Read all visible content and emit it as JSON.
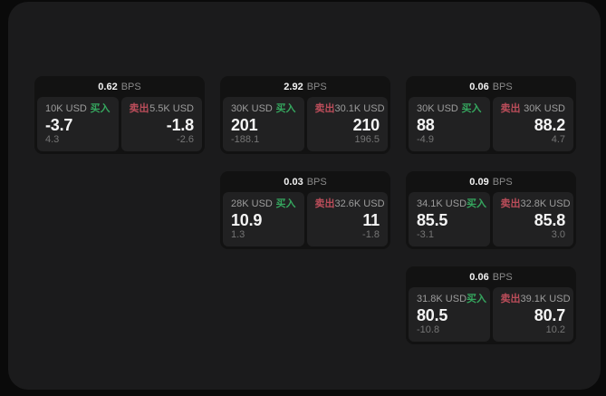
{
  "labels": {
    "bps_unit": "BPS",
    "buy": "买入",
    "sell": "卖出"
  },
  "colors": {
    "background": "#0a0a0a",
    "panel": "#1b1b1c",
    "card": "#121212",
    "subcard": "#212122",
    "buy": "#35a65e",
    "sell": "#bb4d5a"
  },
  "cards": [
    {
      "bps": "0.62",
      "buy": {
        "amount": "10K USD",
        "price": "-3.7",
        "change": "4.3"
      },
      "sell": {
        "amount": "5.5K USD",
        "price": "-1.8",
        "change": "-2.6"
      }
    },
    {
      "bps": "2.92",
      "buy": {
        "amount": "30K USD",
        "price": "201",
        "change": "-188.1"
      },
      "sell": {
        "amount": "30.1K USD",
        "price": "210",
        "change": "196.5"
      }
    },
    {
      "bps": "0.06",
      "buy": {
        "amount": "30K USD",
        "price": "88",
        "change": "-4.9"
      },
      "sell": {
        "amount": "30K USD",
        "price": "88.2",
        "change": "4.7"
      }
    },
    {
      "bps": "0.03",
      "buy": {
        "amount": "28K USD",
        "price": "10.9",
        "change": "1.3"
      },
      "sell": {
        "amount": "32.6K USD",
        "price": "11",
        "change": "-1.8"
      }
    },
    {
      "bps": "0.09",
      "buy": {
        "amount": "34.1K USD",
        "price": "85.5",
        "change": "-3.1"
      },
      "sell": {
        "amount": "32.8K USD",
        "price": "85.8",
        "change": "3.0"
      }
    },
    {
      "bps": "0.06",
      "buy": {
        "amount": "31.8K USD",
        "price": "80.5",
        "change": "-10.8"
      },
      "sell": {
        "amount": "39.1K USD",
        "price": "80.7",
        "change": "10.2"
      }
    }
  ]
}
